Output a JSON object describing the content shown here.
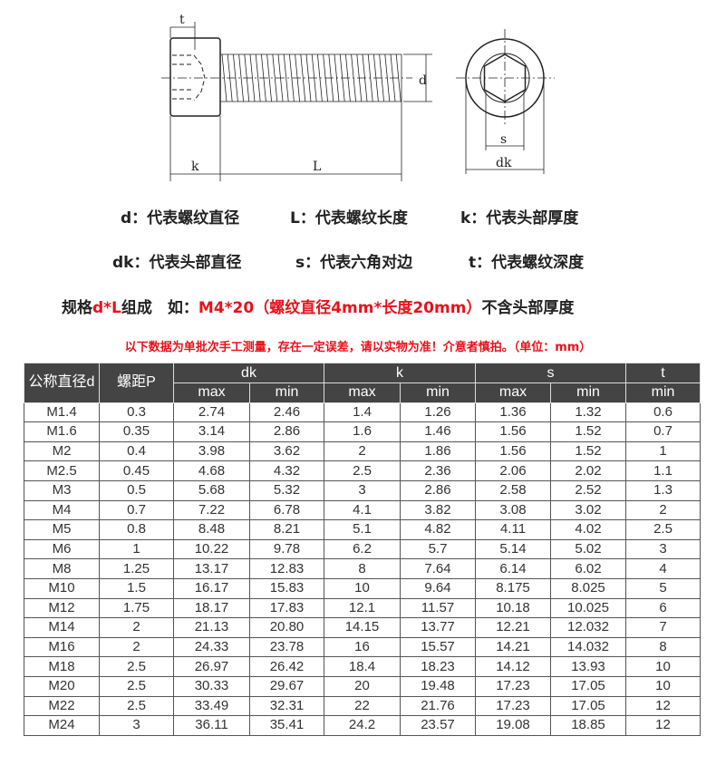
{
  "diagram": {
    "labels": {
      "t": "t",
      "d": "d",
      "k": "k",
      "L": "L",
      "s": "s",
      "dk": "dk"
    }
  },
  "legend": {
    "line1": [
      "d：代表螺纹直径",
      "L：代表螺纹长度",
      "k：代表头部厚度"
    ],
    "line2": [
      "dk：代表头部直径",
      "s：代表六角对边",
      "t：代表螺纹深度"
    ],
    "spec_prefix": "规格",
    "spec_red": "d*L",
    "spec_mid": "组成　如：",
    "spec_example": "M4*20（螺纹直径4mm*长度20mm）",
    "spec_suffix": "不含头部厚度"
  },
  "notice": "以下数据为单批次手工测量，存在一定误差，请以实物为准！介意者慎拍。（单位：mm）",
  "colors": {
    "accent_red": "#e8121a",
    "header_bg": "#444444"
  },
  "table": {
    "header_top": [
      "公称直径d",
      "螺距P",
      "dk",
      "k",
      "s",
      "t"
    ],
    "header_sub": [
      "max",
      "min",
      "max",
      "min",
      "max",
      "min",
      "min"
    ],
    "rows": [
      [
        "M1.4",
        "0.3",
        "2.74",
        "2.46",
        "1.4",
        "1.26",
        "1.36",
        "1.32",
        "0.6"
      ],
      [
        "M1.6",
        "0.35",
        "3.14",
        "2.86",
        "1.6",
        "1.46",
        "1.56",
        "1.52",
        "0.7"
      ],
      [
        "M2",
        "0.4",
        "3.98",
        "3.62",
        "2",
        "1.86",
        "1.56",
        "1.52",
        "1"
      ],
      [
        "M2.5",
        "0.45",
        "4.68",
        "4.32",
        "2.5",
        "2.36",
        "2.06",
        "2.02",
        "1.1"
      ],
      [
        "M3",
        "0.5",
        "5.68",
        "5.32",
        "3",
        "2.86",
        "2.58",
        "2.52",
        "1.3"
      ],
      [
        "M4",
        "0.7",
        "7.22",
        "6.78",
        "4.1",
        "3.82",
        "3.08",
        "3.02",
        "2"
      ],
      [
        "M5",
        "0.8",
        "8.48",
        "8.21",
        "5.1",
        "4.82",
        "4.11",
        "4.02",
        "2.5"
      ],
      [
        "M6",
        "1",
        "10.22",
        "9.78",
        "6.2",
        "5.7",
        "5.14",
        "5.02",
        "3"
      ],
      [
        "M8",
        "1.25",
        "13.17",
        "12.83",
        "8",
        "7.64",
        "6.14",
        "6.02",
        "4"
      ],
      [
        "M10",
        "1.5",
        "16.17",
        "15.83",
        "10",
        "9.64",
        "8.175",
        "8.025",
        "5"
      ],
      [
        "M12",
        "1.75",
        "18.17",
        "17.83",
        "12.1",
        "11.57",
        "10.18",
        "10.025",
        "6"
      ],
      [
        "M14",
        "2",
        "21.13",
        "20.80",
        "14.15",
        "13.77",
        "12.21",
        "12.032",
        "7"
      ],
      [
        "M16",
        "2",
        "24.33",
        "23.78",
        "16",
        "15.57",
        "14.21",
        "14.032",
        "8"
      ],
      [
        "M18",
        "2.5",
        "26.97",
        "26.42",
        "18.4",
        "18.23",
        "14.12",
        "13.93",
        "10"
      ],
      [
        "M20",
        "2.5",
        "30.33",
        "29.67",
        "20",
        "19.48",
        "17.23",
        "17.05",
        "10"
      ],
      [
        "M22",
        "2.5",
        "33.49",
        "32.31",
        "22",
        "21.76",
        "17.23",
        "17.05",
        "12"
      ],
      [
        "M24",
        "3",
        "36.11",
        "35.41",
        "24.2",
        "23.57",
        "19.08",
        "18.85",
        "12"
      ]
    ]
  }
}
